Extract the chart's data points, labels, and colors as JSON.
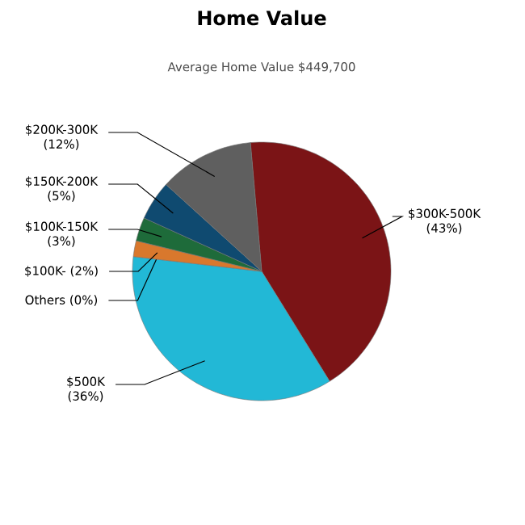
{
  "chart_data": {
    "type": "pie",
    "title": "Home Value",
    "subtitle": "Average Home Value  $449,700",
    "categories": [
      "$300K-500K",
      "$500K",
      "Others",
      "$100K-",
      "$100K-150K",
      "$150K-200K",
      "$200K-300K"
    ],
    "values": [
      43,
      36,
      0,
      2,
      3,
      5,
      12
    ],
    "value_labels": [
      "(43%)",
      "(36%)",
      "(0%)",
      "(2%)",
      "(3%)",
      "(5%)",
      "(12%)"
    ],
    "colors": [
      "#7b1416",
      "#22b8d6",
      "#8a8a2a",
      "#d9782d",
      "#1e6b3a",
      "#0f4a70",
      "#5f5f5f"
    ]
  }
}
